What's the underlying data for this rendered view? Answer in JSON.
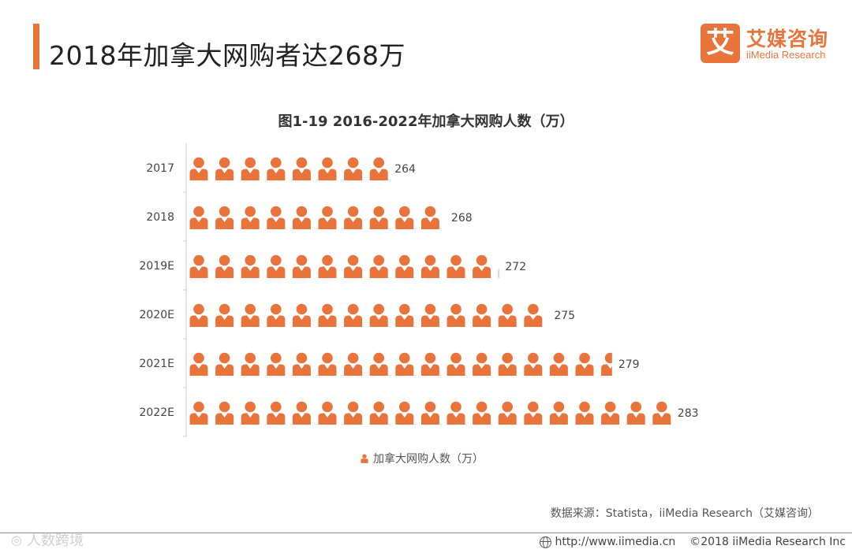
{
  "header": {
    "title": "2018年加拿大网购者达268万",
    "logo_mark": "艾",
    "logo_cn": "艾媒咨询",
    "logo_en": "iiMedia Research"
  },
  "colors": {
    "accent": "#e8743b",
    "text": "#333333",
    "axis": "#cccccc"
  },
  "chart_data": {
    "type": "bar",
    "title": "图1-19  2016-2022年加拿大网购人数（万）",
    "orientation": "horizontal",
    "mark": "person-icon",
    "categories": [
      "2017",
      "2018",
      "2019E",
      "2020E",
      "2021E",
      "2022E"
    ],
    "series": [
      {
        "name": "加拿大网购人数（万）",
        "values": [
          264,
          268,
          272,
          275,
          279,
          283
        ]
      }
    ],
    "icon_counts": [
      8,
      10.2,
      12.3,
      14.2,
      16.7,
      19
    ],
    "legend_position": "bottom",
    "grid": false
  },
  "legend": {
    "label": "加拿大网购人数（万）"
  },
  "source": "数据来源：Statista，iiMedia Research（艾媒咨询）",
  "footer": {
    "watermark": "人数跨境",
    "url": "http://www.iimedia.cn",
    "copyright": "©2018  iiMedia Research Inc"
  }
}
